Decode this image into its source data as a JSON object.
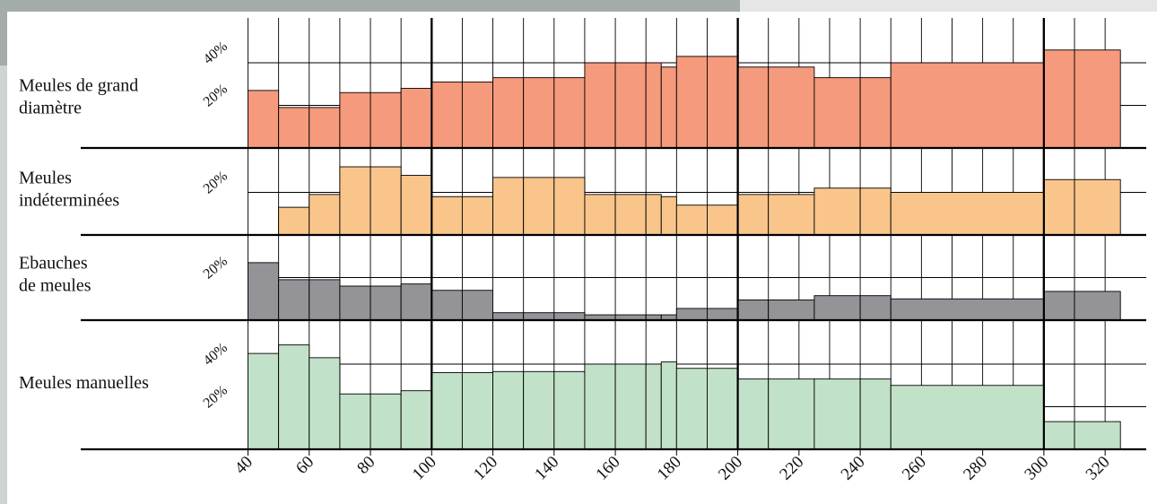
{
  "chart_data": {
    "type": "bar",
    "x_ticks": [
      "40",
      "60",
      "80",
      "100",
      "120",
      "140",
      "160",
      "180",
      "200",
      "220",
      "240",
      "260",
      "280",
      "300",
      "320"
    ],
    "panels": [
      {
        "label_lines": [
          "Meules de grand",
          "diamètre"
        ],
        "color": "#f59a7c",
        "pct_ticks": [
          "20%",
          "40%"
        ],
        "bars": [
          {
            "x0": 40,
            "x1": 50,
            "value": 27
          },
          {
            "x0": 50,
            "x1": 60,
            "value": 19
          },
          {
            "x0": 60,
            "x1": 70,
            "value": 19
          },
          {
            "x0": 70,
            "x1": 80,
            "value": 26
          },
          {
            "x0": 80,
            "x1": 90,
            "value": 26
          },
          {
            "x0": 90,
            "x1": 100,
            "value": 28
          },
          {
            "x0": 100,
            "x1": 110,
            "value": 31
          },
          {
            "x0": 110,
            "x1": 120,
            "value": 31
          },
          {
            "x0": 120,
            "x1": 130,
            "value": 33
          },
          {
            "x0": 130,
            "x1": 140,
            "value": 33
          },
          {
            "x0": 140,
            "x1": 150,
            "value": 33
          },
          {
            "x0": 150,
            "x1": 160,
            "value": 40
          },
          {
            "x0": 160,
            "x1": 170,
            "value": 40
          },
          {
            "x0": 170,
            "x1": 175,
            "value": 40
          },
          {
            "x0": 175,
            "x1": 180,
            "value": 38
          },
          {
            "x0": 180,
            "x1": 190,
            "value": 43
          },
          {
            "x0": 190,
            "x1": 200,
            "value": 43
          },
          {
            "x0": 200,
            "x1": 210,
            "value": 38
          },
          {
            "x0": 210,
            "x1": 225,
            "value": 38
          },
          {
            "x0": 225,
            "x1": 240,
            "value": 33
          },
          {
            "x0": 240,
            "x1": 250,
            "value": 33
          },
          {
            "x0": 250,
            "x1": 300,
            "value": 40
          },
          {
            "x0": 300,
            "x1": 310,
            "value": 46
          },
          {
            "x0": 310,
            "x1": 325,
            "value": 46
          }
        ]
      },
      {
        "label_lines": [
          "Meules",
          "indéterminées"
        ],
        "color": "#f9c58b",
        "pct_ticks": [
          "20%"
        ],
        "bars": [
          {
            "x0": 50,
            "x1": 60,
            "value": 13
          },
          {
            "x0": 60,
            "x1": 70,
            "value": 19
          },
          {
            "x0": 70,
            "x1": 80,
            "value": 32
          },
          {
            "x0": 80,
            "x1": 90,
            "value": 32
          },
          {
            "x0": 90,
            "x1": 100,
            "value": 28
          },
          {
            "x0": 100,
            "x1": 110,
            "value": 18
          },
          {
            "x0": 110,
            "x1": 120,
            "value": 18
          },
          {
            "x0": 120,
            "x1": 130,
            "value": 27
          },
          {
            "x0": 130,
            "x1": 140,
            "value": 27
          },
          {
            "x0": 140,
            "x1": 150,
            "value": 27
          },
          {
            "x0": 150,
            "x1": 160,
            "value": 19
          },
          {
            "x0": 160,
            "x1": 170,
            "value": 19
          },
          {
            "x0": 170,
            "x1": 175,
            "value": 19
          },
          {
            "x0": 175,
            "x1": 180,
            "value": 18
          },
          {
            "x0": 180,
            "x1": 190,
            "value": 14
          },
          {
            "x0": 190,
            "x1": 200,
            "value": 14
          },
          {
            "x0": 200,
            "x1": 210,
            "value": 19
          },
          {
            "x0": 210,
            "x1": 225,
            "value": 19
          },
          {
            "x0": 225,
            "x1": 240,
            "value": 22
          },
          {
            "x0": 240,
            "x1": 250,
            "value": 22
          },
          {
            "x0": 250,
            "x1": 300,
            "value": 20
          },
          {
            "x0": 300,
            "x1": 310,
            "value": 26
          },
          {
            "x0": 310,
            "x1": 325,
            "value": 26
          }
        ]
      },
      {
        "label_lines": [
          "Ebauches",
          "de meules"
        ],
        "color": "#939398",
        "pct_ticks": [
          "20%"
        ],
        "bars": [
          {
            "x0": 40,
            "x1": 50,
            "value": 27
          },
          {
            "x0": 50,
            "x1": 60,
            "value": 19
          },
          {
            "x0": 60,
            "x1": 70,
            "value": 19
          },
          {
            "x0": 70,
            "x1": 80,
            "value": 16
          },
          {
            "x0": 80,
            "x1": 90,
            "value": 16
          },
          {
            "x0": 90,
            "x1": 100,
            "value": 17
          },
          {
            "x0": 100,
            "x1": 110,
            "value": 14
          },
          {
            "x0": 110,
            "x1": 120,
            "value": 14
          },
          {
            "x0": 120,
            "x1": 130,
            "value": 3.5
          },
          {
            "x0": 130,
            "x1": 140,
            "value": 3.5
          },
          {
            "x0": 140,
            "x1": 150,
            "value": 3.5
          },
          {
            "x0": 150,
            "x1": 160,
            "value": 2.5
          },
          {
            "x0": 160,
            "x1": 170,
            "value": 2.5
          },
          {
            "x0": 170,
            "x1": 175,
            "value": 2.5
          },
          {
            "x0": 175,
            "x1": 180,
            "value": 2.5
          },
          {
            "x0": 180,
            "x1": 190,
            "value": 5.5
          },
          {
            "x0": 190,
            "x1": 200,
            "value": 5.5
          },
          {
            "x0": 200,
            "x1": 210,
            "value": 9.5
          },
          {
            "x0": 210,
            "x1": 225,
            "value": 9.5
          },
          {
            "x0": 225,
            "x1": 240,
            "value": 11.5
          },
          {
            "x0": 240,
            "x1": 250,
            "value": 11.5
          },
          {
            "x0": 250,
            "x1": 300,
            "value": 10
          },
          {
            "x0": 300,
            "x1": 310,
            "value": 13.5
          },
          {
            "x0": 310,
            "x1": 325,
            "value": 13.5
          }
        ]
      },
      {
        "label_lines": [
          "Meules manuelles"
        ],
        "color": "#c2e1c9",
        "pct_ticks": [
          "20%",
          "40%"
        ],
        "bars": [
          {
            "x0": 40,
            "x1": 50,
            "value": 45
          },
          {
            "x0": 50,
            "x1": 60,
            "value": 49
          },
          {
            "x0": 60,
            "x1": 70,
            "value": 43
          },
          {
            "x0": 70,
            "x1": 80,
            "value": 26
          },
          {
            "x0": 80,
            "x1": 90,
            "value": 26
          },
          {
            "x0": 90,
            "x1": 100,
            "value": 27.5
          },
          {
            "x0": 100,
            "x1": 110,
            "value": 36
          },
          {
            "x0": 110,
            "x1": 120,
            "value": 36
          },
          {
            "x0": 120,
            "x1": 130,
            "value": 36.5
          },
          {
            "x0": 130,
            "x1": 140,
            "value": 36.5
          },
          {
            "x0": 140,
            "x1": 150,
            "value": 36.5
          },
          {
            "x0": 150,
            "x1": 160,
            "value": 40
          },
          {
            "x0": 160,
            "x1": 170,
            "value": 40
          },
          {
            "x0": 170,
            "x1": 175,
            "value": 40
          },
          {
            "x0": 175,
            "x1": 180,
            "value": 41
          },
          {
            "x0": 180,
            "x1": 190,
            "value": 38
          },
          {
            "x0": 190,
            "x1": 200,
            "value": 38
          },
          {
            "x0": 200,
            "x1": 210,
            "value": 33
          },
          {
            "x0": 210,
            "x1": 225,
            "value": 33
          },
          {
            "x0": 225,
            "x1": 240,
            "value": 33
          },
          {
            "x0": 240,
            "x1": 250,
            "value": 33
          },
          {
            "x0": 250,
            "x1": 300,
            "value": 30
          },
          {
            "x0": 300,
            "x1": 310,
            "value": 13
          },
          {
            "x0": 310,
            "x1": 325,
            "value": 13
          }
        ]
      }
    ]
  }
}
